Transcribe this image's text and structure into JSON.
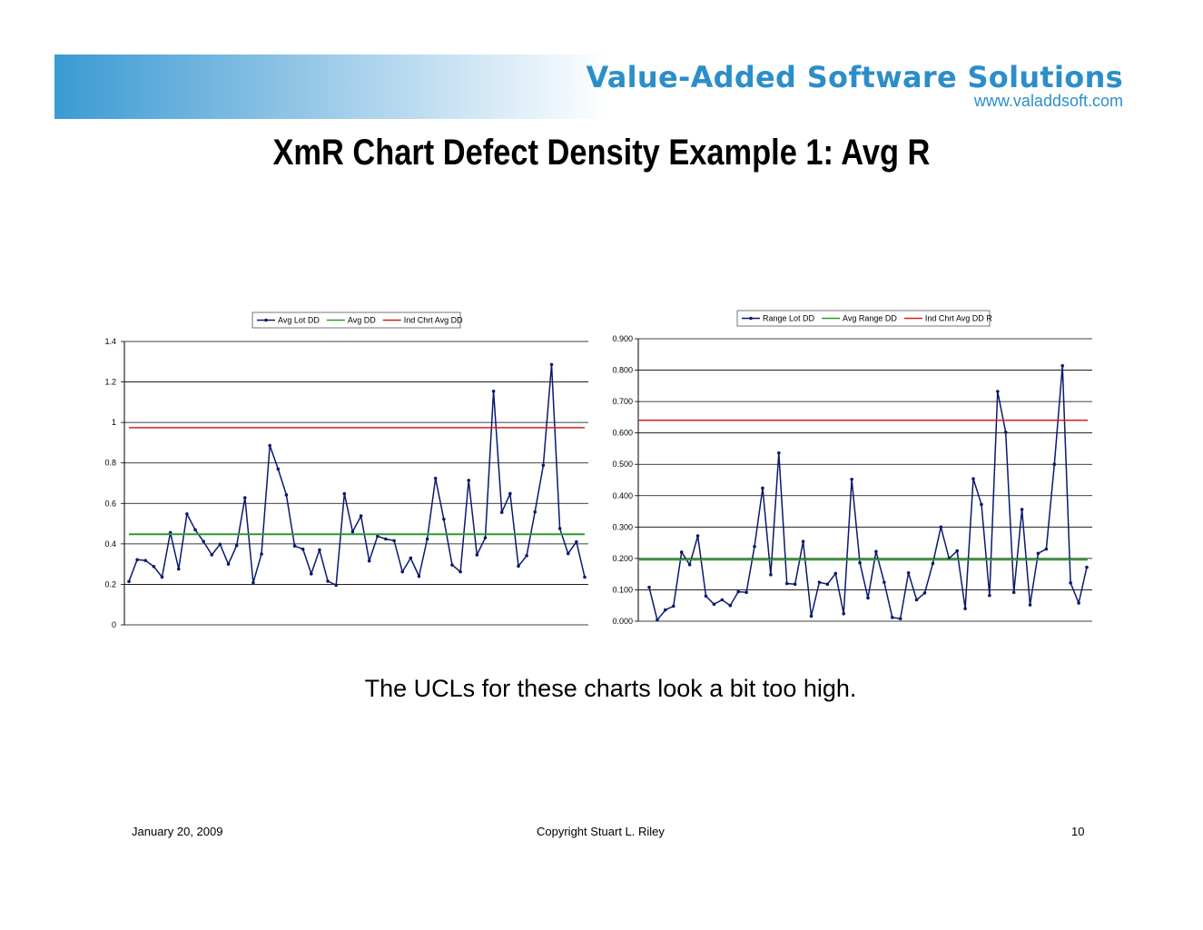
{
  "header": {
    "brand_name": "Value-Added Software Solutions",
    "brand_url": "www.valaddsoft.com",
    "brand_color": "#2c8ec9"
  },
  "slide": {
    "title": "XmR Chart Defect Density Example 1:  Avg R",
    "caption": "The UCLs for these charts look a bit too high."
  },
  "footer": {
    "date": "January 20, 2009",
    "copyright": "Copyright    Stuart L. Riley",
    "page": "10"
  },
  "chart_data": [
    {
      "type": "line",
      "title": "",
      "ylim": [
        0,
        1.4
      ],
      "yticks": [
        "0",
        "0.2",
        "0.4",
        "0.6",
        "0.8",
        "1",
        "1.2",
        "1.4"
      ],
      "yticks_values": [
        0,
        0.2,
        0.4,
        0.6,
        0.8,
        1.0,
        1.2,
        1.4
      ],
      "grid": true,
      "legend_position": "top",
      "series": [
        {
          "name": "Avg Lot DD",
          "color": "#0a1a6e",
          "markers": true,
          "values": [
            0.214,
            0.322,
            0.318,
            0.288,
            0.236,
            0.456,
            0.276,
            0.548,
            0.47,
            0.412,
            0.346,
            0.398,
            0.3,
            0.392,
            0.628,
            0.208,
            0.35,
            0.886,
            0.77,
            0.642,
            0.39,
            0.374,
            0.252,
            0.37,
            0.216,
            0.196,
            0.648,
            0.46,
            0.538,
            0.316,
            0.438,
            0.424,
            0.416,
            0.262,
            0.33,
            0.24,
            0.424,
            0.724,
            0.522,
            0.296,
            0.262,
            0.714,
            0.346,
            0.43,
            1.154,
            0.556,
            0.648,
            0.29,
            0.342,
            0.558,
            0.788,
            1.286,
            0.476,
            0.352,
            0.41,
            0.236
          ]
        },
        {
          "name": "Avg DD",
          "color": "#2e9a2e",
          "markers": false,
          "values": [
            0.448,
            0.448
          ]
        },
        {
          "name": "Ind Chrt Avg DD",
          "color": "#d42020",
          "markers": false,
          "values": [
            0.974,
            0.974
          ]
        }
      ]
    },
    {
      "type": "line",
      "title": "",
      "ylim": [
        0,
        0.9
      ],
      "yticks": [
        "0.000",
        "0.100",
        "0.200",
        "0.300",
        "0.400",
        "0.500",
        "0.600",
        "0.700",
        "0.800",
        "0.900"
      ],
      "yticks_values": [
        0,
        0.1,
        0.2,
        0.3,
        0.4,
        0.5,
        0.6,
        0.7,
        0.8,
        0.9
      ],
      "grid": true,
      "legend_position": "top",
      "series": [
        {
          "name": "Range Lot DD",
          "color": "#0a1a6e",
          "markers": true,
          "values": [
            0.108,
            0.004,
            0.036,
            0.048,
            0.22,
            0.18,
            0.272,
            0.08,
            0.054,
            0.068,
            0.05,
            0.094,
            0.092,
            0.238,
            0.424,
            0.148,
            0.536,
            0.12,
            0.118,
            0.254,
            0.016,
            0.124,
            0.118,
            0.152,
            0.024,
            0.452,
            0.186,
            0.074,
            0.222,
            0.124,
            0.012,
            0.008,
            0.154,
            0.068,
            0.09,
            0.184,
            0.3,
            0.2,
            0.224,
            0.04,
            0.454,
            0.372,
            0.082,
            0.732,
            0.602,
            0.092,
            0.356,
            0.052,
            0.216,
            0.23,
            0.5,
            0.814,
            0.122,
            0.058,
            0.172
          ]
        },
        {
          "name": "Avg Range DD",
          "color": "#2e9a2e",
          "markers": false,
          "values": [
            0.196,
            0.196
          ]
        },
        {
          "name": "Ind Chrt Avg DD R",
          "color": "#d42020",
          "markers": false,
          "values": [
            0.64,
            0.64
          ]
        }
      ]
    }
  ]
}
